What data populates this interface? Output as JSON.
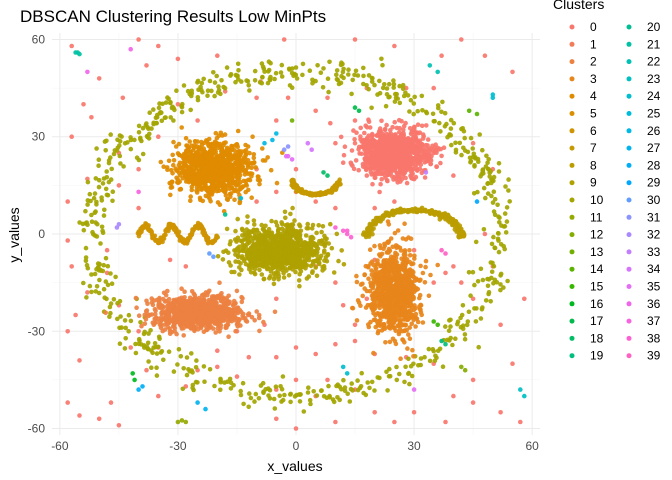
{
  "chart_data": {
    "type": "scatter",
    "title": "DBSCAN Clustering Results Low MinPts",
    "xlabel": "x_values",
    "ylabel": "y_values",
    "xlim": [
      -62,
      62
    ],
    "ylim": [
      -62,
      62
    ],
    "xticks": [
      -60,
      -30,
      0,
      30,
      60
    ],
    "yticks": [
      -60,
      -30,
      0,
      30,
      60
    ],
    "grid": true,
    "legend": {
      "title": "Clusters",
      "position": "right",
      "columns": 2,
      "entries": [
        "0",
        "1",
        "2",
        "3",
        "4",
        "5",
        "6",
        "7",
        "8",
        "9",
        "10",
        "11",
        "12",
        "13",
        "14",
        "15",
        "16",
        "17",
        "18",
        "19",
        "20",
        "21",
        "22",
        "23",
        "24",
        "25",
        "26",
        "27",
        "28",
        "29",
        "30",
        "31",
        "32",
        "33",
        "34",
        "35",
        "36",
        "37",
        "38",
        "39"
      ],
      "colors": [
        "#F8766D",
        "#F37B59",
        "#ED8141",
        "#E7861B",
        "#E08B00",
        "#D89000",
        "#CF9400",
        "#C59900",
        "#BB9D00",
        "#AFA100",
        "#A3A500",
        "#95A900",
        "#85AD00",
        "#72B000",
        "#5BB300",
        "#39B600",
        "#00B81F",
        "#00BB4B",
        "#00BD66",
        "#00BF7D",
        "#00C091",
        "#00C1A3",
        "#00C1B3",
        "#00C0C2",
        "#00BECF",
        "#00BCDB",
        "#00B9E5",
        "#00B4EF",
        "#00AEF7",
        "#00A7FF",
        "#619CFF",
        "#8B93FF",
        "#A989FF",
        "#C17FFF",
        "#D575FE",
        "#E46EF6",
        "#F066EA",
        "#F863DE",
        "#FD61D1",
        "#FF61C3"
      ]
    },
    "clusters": [
      {
        "name": "ring",
        "label": "10",
        "shape": "ring",
        "cx": 0,
        "cy": 0,
        "r": 52,
        "ry": 50,
        "n": 700,
        "noise": 2.2
      },
      {
        "name": "upper-left-blob",
        "label": "4",
        "shape": "blob",
        "cx": -21,
        "cy": 20,
        "sx": 4.8,
        "sy": 4.2,
        "n": 950
      },
      {
        "name": "upper-right-blob",
        "label": "0",
        "shape": "blob",
        "cx": 25,
        "cy": 25,
        "sx": 4.6,
        "sy": 3.6,
        "n": 950
      },
      {
        "name": "center-blob",
        "label": "9",
        "shape": "blob",
        "cx": -4,
        "cy": -5,
        "sx": 5.2,
        "sy": 3.7,
        "n": 950
      },
      {
        "name": "lower-left-blob",
        "label": "2",
        "shape": "blob",
        "cx": -25,
        "cy": -24.5,
        "sx": 5.6,
        "sy": 2.4,
        "n": 950
      },
      {
        "name": "lower-right-blob",
        "label": "3",
        "shape": "blob",
        "cx": 25,
        "cy": -18,
        "sx": 3.2,
        "sy": 6.5,
        "n": 950
      },
      {
        "name": "sine-wave",
        "label": "6",
        "shape": "sine",
        "x0": -40,
        "x1": -20,
        "y": 0,
        "amp": 2.5,
        "period": 6.7,
        "n": 220
      },
      {
        "name": "small-arc",
        "label": "7",
        "shape": "arc-down",
        "cx": 5,
        "cy": 17,
        "r": 6,
        "n": 140
      },
      {
        "name": "large-arc",
        "label": "8",
        "shape": "arc-up",
        "cx": 30,
        "cy": 0,
        "r": 12,
        "n": 280
      }
    ],
    "small_clusters": [
      {
        "label": "21",
        "x": [
          -56,
          -55,
          -55.5
        ],
        "y": [
          56,
          55.5,
          56
        ]
      },
      {
        "label": "36",
        "x": [
          -42,
          -53
        ],
        "y": [
          57,
          50
        ]
      },
      {
        "label": "22",
        "x": [
          34,
          36
        ],
        "y": [
          52,
          50
        ]
      },
      {
        "label": "24",
        "x": [
          50,
          50
        ],
        "y": [
          43,
          42
        ]
      },
      {
        "label": "14",
        "x": [
          44,
          46
        ],
        "y": [
          38,
          37
        ]
      },
      {
        "label": "17",
        "x": [
          15,
          16
        ],
        "y": [
          39,
          38
        ]
      },
      {
        "label": "13",
        "x": [
          -1
        ],
        "y": [
          35
        ]
      },
      {
        "label": "26",
        "x": [
          -8,
          -6,
          -5
        ],
        "y": [
          28,
          29,
          31
        ]
      },
      {
        "label": "34",
        "x": [
          3,
          4
        ],
        "y": [
          28,
          26
        ]
      },
      {
        "label": "31",
        "x": [
          -3,
          -2
        ],
        "y": [
          26,
          27
        ]
      },
      {
        "label": "35",
        "x": [
          -2,
          -1,
          -2.5
        ],
        "y": [
          24,
          23,
          24
        ]
      },
      {
        "label": "18",
        "x": [
          7,
          8
        ],
        "y": [
          19,
          18
        ]
      },
      {
        "label": "33",
        "x": [
          33
        ],
        "y": [
          19
        ]
      },
      {
        "label": "25",
        "x": [
          -14
        ],
        "y": [
          11
        ]
      },
      {
        "label": "20",
        "x": [
          -18
        ],
        "y": [
          6
        ]
      },
      {
        "label": "32",
        "x": [
          -45,
          -45.5
        ],
        "y": [
          3,
          2
        ]
      },
      {
        "label": "37",
        "x": [
          -40
        ],
        "y": [
          13
        ]
      },
      {
        "label": "29",
        "x": [
          46
        ],
        "y": [
          10
        ]
      },
      {
        "label": "38",
        "x": [
          10,
          12,
          13,
          14,
          13
        ],
        "y": [
          2,
          1,
          0,
          -1,
          1
        ]
      },
      {
        "label": "30",
        "x": [
          -22,
          -21
        ],
        "y": [
          -6,
          -7
        ]
      },
      {
        "label": "39",
        "x": [
          37,
          38
        ],
        "y": [
          -5,
          -6
        ]
      },
      {
        "label": "15",
        "x": [
          35,
          36
        ],
        "y": [
          -27,
          -28
        ]
      },
      {
        "label": "19",
        "x": [
          37,
          38
        ],
        "y": [
          -33,
          -34
        ]
      },
      {
        "label": "12",
        "x": [
          42,
          43
        ],
        "y": [
          -41,
          -42
        ]
      },
      {
        "label": "23",
        "x": [
          57,
          58
        ],
        "y": [
          -48,
          -50
        ]
      },
      {
        "label": "16",
        "x": [
          -41.5,
          -41
        ],
        "y": [
          -43,
          -45
        ]
      },
      {
        "label": "28",
        "x": [
          -40,
          -39
        ],
        "y": [
          -48,
          -47
        ]
      },
      {
        "label": "27",
        "x": [
          -25,
          -23
        ],
        "y": [
          -52,
          -54
        ]
      },
      {
        "label": "11",
        "x": [
          -30,
          -28,
          -29
        ],
        "y": [
          -58,
          -58,
          -57.5
        ]
      },
      {
        "label": "24",
        "x": [
          12,
          13
        ],
        "y": [
          -41,
          -43
        ]
      },
      {
        "label": "35",
        "x": [
          30
        ],
        "y": [
          -48
        ]
      }
    ],
    "noise": [
      [
        -57,
        58
      ],
      [
        -50,
        48
      ],
      [
        -44,
        42
      ],
      [
        -40,
        60
      ],
      [
        -38,
        52
      ],
      [
        -35,
        58
      ],
      [
        -30,
        54
      ],
      [
        -20,
        55
      ],
      [
        -9,
        47
      ],
      [
        -3,
        60
      ],
      [
        15,
        60
      ],
      [
        25,
        58
      ],
      [
        37,
        55
      ],
      [
        42,
        60
      ],
      [
        48,
        55
      ],
      [
        55,
        50
      ],
      [
        -57,
        30
      ],
      [
        -54,
        40
      ],
      [
        -52,
        36
      ],
      [
        -58,
        10
      ],
      [
        -53,
        17
      ],
      [
        -58,
        -2
      ],
      [
        -57,
        -10
      ],
      [
        -53,
        -18
      ],
      [
        -56,
        -25
      ],
      [
        -58,
        -30
      ],
      [
        -55,
        -39
      ],
      [
        -58,
        -52
      ],
      [
        -55,
        -56
      ],
      [
        -50,
        -57
      ],
      [
        -47,
        -52
      ],
      [
        -45,
        -59
      ],
      [
        -35,
        -50
      ],
      [
        -28,
        -47
      ],
      [
        -20,
        -41
      ],
      [
        -15,
        -44
      ],
      [
        -5,
        -38
      ],
      [
        0,
        -35
      ],
      [
        5,
        -37
      ],
      [
        10,
        -34
      ],
      [
        15,
        -33
      ],
      [
        20,
        -37
      ],
      [
        5,
        -50
      ],
      [
        -5,
        -57
      ],
      [
        0,
        -60
      ],
      [
        10,
        -58
      ],
      [
        20,
        -55
      ],
      [
        25,
        -58
      ],
      [
        30,
        -55
      ],
      [
        38,
        -58
      ],
      [
        45,
        -52
      ],
      [
        52,
        -55
      ],
      [
        57,
        -58
      ],
      [
        -40,
        20
      ],
      [
        -35,
        30
      ],
      [
        -40,
        8
      ],
      [
        -45,
        15
      ],
      [
        -32,
        -8
      ],
      [
        -28,
        -10
      ],
      [
        -15,
        -2
      ],
      [
        -10,
        10
      ],
      [
        -5,
        13
      ],
      [
        0,
        13
      ],
      [
        5,
        10
      ],
      [
        10,
        8
      ],
      [
        -10,
        20
      ],
      [
        0,
        20
      ],
      [
        12,
        22
      ],
      [
        -5,
        35
      ],
      [
        5,
        38
      ],
      [
        15,
        35
      ],
      [
        15,
        28
      ],
      [
        18,
        18
      ],
      [
        10,
        28
      ],
      [
        20,
        8
      ],
      [
        25,
        10
      ],
      [
        35,
        25
      ],
      [
        40,
        18
      ],
      [
        38,
        -12
      ],
      [
        40,
        -10
      ],
      [
        42,
        -15
      ],
      [
        45,
        -20
      ],
      [
        52,
        -28
      ],
      [
        55,
        -40
      ],
      [
        58,
        -20
      ],
      [
        -35,
        -35
      ],
      [
        -40,
        -30
      ],
      [
        -45,
        -22
      ],
      [
        -48,
        -12
      ],
      [
        -12,
        -25
      ],
      [
        -8,
        -28
      ],
      [
        -5,
        -20
      ],
      [
        5,
        -10
      ],
      [
        10,
        -15
      ],
      [
        12,
        -22
      ],
      [
        15,
        -28
      ],
      [
        18,
        -20
      ],
      [
        35,
        -40
      ],
      [
        40,
        -50
      ],
      [
        45,
        -45
      ],
      [
        -15,
        -30
      ],
      [
        -12,
        -38
      ],
      [
        0,
        -45
      ],
      [
        8,
        -45
      ],
      [
        -20,
        -36
      ],
      [
        -25,
        35
      ],
      [
        -30,
        40
      ],
      [
        -18,
        44
      ],
      [
        -10,
        42
      ],
      [
        -2,
        42
      ],
      [
        8,
        42
      ],
      [
        18,
        45
      ],
      [
        28,
        45
      ],
      [
        35,
        45
      ],
      [
        -45,
        25
      ],
      [
        45,
        28
      ],
      [
        50,
        20
      ],
      [
        48,
        0
      ],
      [
        50,
        -10
      ],
      [
        -48,
        -5
      ],
      [
        -42,
        -35
      ],
      [
        -38,
        -42
      ],
      [
        35,
        -15
      ],
      [
        30,
        -5
      ],
      [
        20,
        -8
      ],
      [
        -5,
        -48
      ],
      [
        15,
        -48
      ],
      [
        -25,
        -42
      ],
      [
        28,
        -38
      ]
    ]
  }
}
